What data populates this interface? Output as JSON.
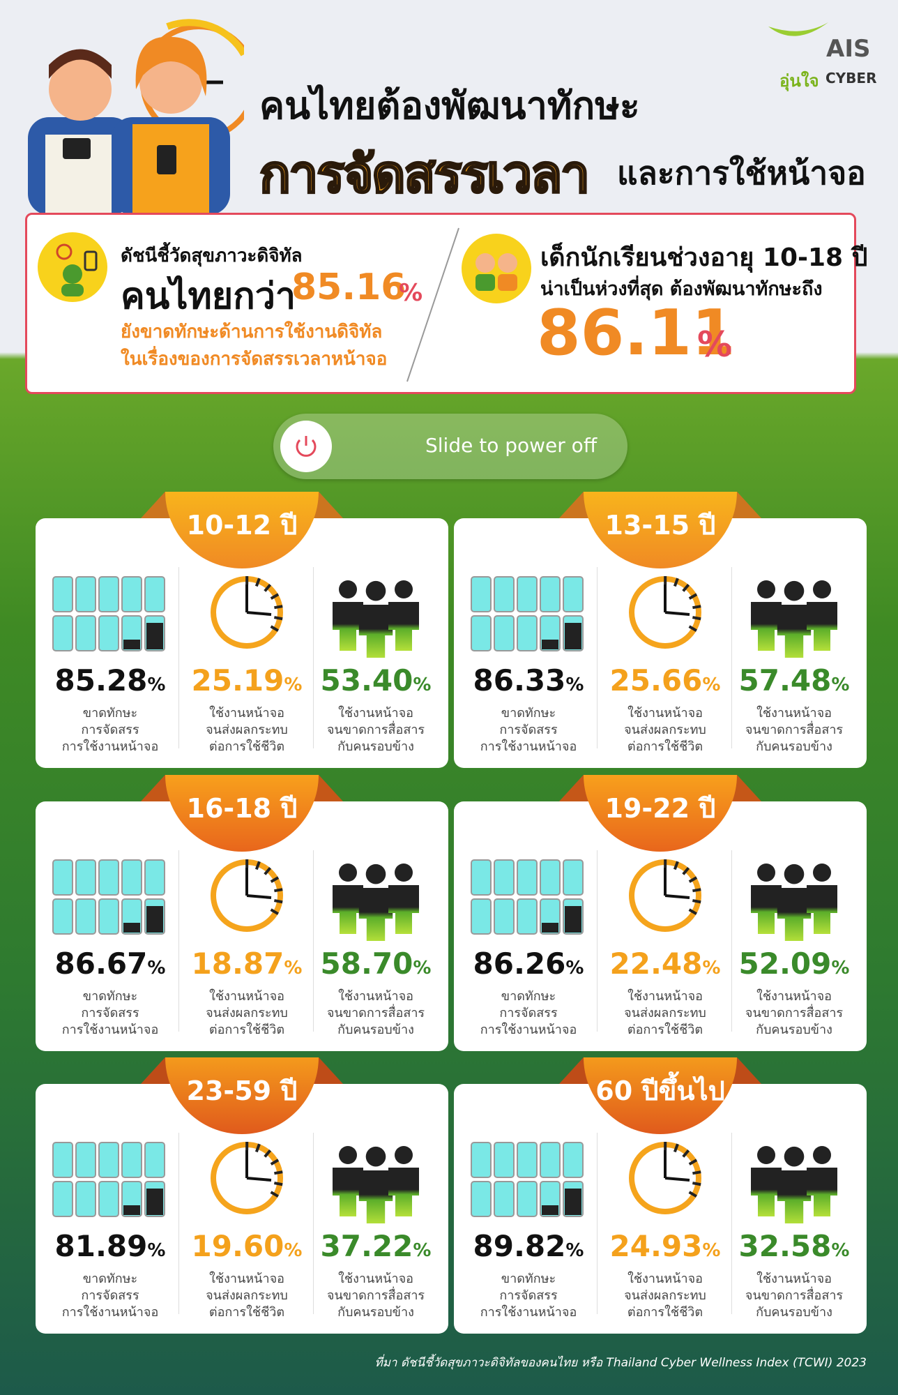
{
  "header": {
    "title_line1": "คนไทยต้องพัฒนาทักษะ",
    "title_highlight": "การจัดสรรเวลา",
    "title_line2": "และการใช้หน้าจอ",
    "logo_brand": "AIS",
    "logo_sub": "อุ่นใจ",
    "logo_cyber": "CYBER"
  },
  "summary": {
    "left": {
      "label": "ดัชนีชี้วัดสุขภาวะดิจิทัล",
      "lead": "คนไทยกว่า",
      "value": "85.16",
      "unit": "%",
      "line1": "ยังขาดทักษะด้านการใช้งานดิจิทัล",
      "line2": "ในเรื่องของการจัดสรรเวลาหน้าจอ"
    },
    "right": {
      "line1": "เด็กนักเรียนช่วงอายุ 10-18 ปี",
      "line2": "น่าเป็นห่วงที่สุด ต้องพัฒนาทักษะถึง",
      "value": "86.11",
      "unit": "%"
    }
  },
  "slider": {
    "label": "Slide to power off"
  },
  "cards": [
    {
      "age": "10-12 ปี",
      "stats": [
        {
          "value": "85.28",
          "unit": "%",
          "lines": [
            "ขาดทักษะ",
            "การจัดสรร",
            "การใช้งานหน้าจอ"
          ]
        },
        {
          "value": "25.19",
          "unit": "%",
          "lines": [
            "ใช้งานหน้าจอ",
            "จนส่งผลกระทบ",
            "ต่อการใช้ชีวิต"
          ]
        },
        {
          "value": "53.40",
          "unit": "%",
          "lines": [
            "ใช้งานหน้าจอ",
            "จนขาดการสื่อสาร",
            "กับคนรอบข้าง"
          ]
        }
      ]
    },
    {
      "age": "13-15 ปี",
      "stats": [
        {
          "value": "86.33",
          "unit": "%",
          "lines": [
            "ขาดทักษะ",
            "การจัดสรร",
            "การใช้งานหน้าจอ"
          ]
        },
        {
          "value": "25.66",
          "unit": "%",
          "lines": [
            "ใช้งานหน้าจอ",
            "จนส่งผลกระทบ",
            "ต่อการใช้ชีวิต"
          ]
        },
        {
          "value": "57.48",
          "unit": "%",
          "lines": [
            "ใช้งานหน้าจอ",
            "จนขาดการสื่อสาร",
            "กับคนรอบข้าง"
          ]
        }
      ]
    },
    {
      "age": "16-18 ปี",
      "stats": [
        {
          "value": "86.67",
          "unit": "%",
          "lines": [
            "ขาดทักษะ",
            "การจัดสรร",
            "การใช้งานหน้าจอ"
          ]
        },
        {
          "value": "18.87",
          "unit": "%",
          "lines": [
            "ใช้งานหน้าจอ",
            "จนส่งผลกระทบ",
            "ต่อการใช้ชีวิต"
          ]
        },
        {
          "value": "58.70",
          "unit": "%",
          "lines": [
            "ใช้งานหน้าจอ",
            "จนขาดการสื่อสาร",
            "กับคนรอบข้าง"
          ]
        }
      ]
    },
    {
      "age": "19-22 ปี",
      "stats": [
        {
          "value": "86.26",
          "unit": "%",
          "lines": [
            "ขาดทักษะ",
            "การจัดสรร",
            "การใช้งานหน้าจอ"
          ]
        },
        {
          "value": "22.48",
          "unit": "%",
          "lines": [
            "ใช้งานหน้าจอ",
            "จนส่งผลกระทบ",
            "ต่อการใช้ชีวิต"
          ]
        },
        {
          "value": "52.09",
          "unit": "%",
          "lines": [
            "ใช้งานหน้าจอ",
            "จนขาดการสื่อสาร",
            "กับคนรอบข้าง"
          ]
        }
      ]
    },
    {
      "age": "23-59 ปี",
      "stats": [
        {
          "value": "81.89",
          "unit": "%",
          "lines": [
            "ขาดทักษะ",
            "การจัดสรร",
            "การใช้งานหน้าจอ"
          ]
        },
        {
          "value": "19.60",
          "unit": "%",
          "lines": [
            "ใช้งานหน้าจอ",
            "จนส่งผลกระทบ",
            "ต่อการใช้ชีวิต"
          ]
        },
        {
          "value": "37.22",
          "unit": "%",
          "lines": [
            "ใช้งานหน้าจอ",
            "จนขาดการสื่อสาร",
            "กับคนรอบข้าง"
          ]
        }
      ]
    },
    {
      "age": "60 ปีขึ้นไป",
      "stats": [
        {
          "value": "89.82",
          "unit": "%",
          "lines": [
            "ขาดทักษะ",
            "การจัดสรร",
            "การใช้งานหน้าจอ"
          ]
        },
        {
          "value": "24.93",
          "unit": "%",
          "lines": [
            "ใช้งานหน้าจอ",
            "จนส่งผลกระทบ",
            "ต่อการใช้ชีวิต"
          ]
        },
        {
          "value": "32.58",
          "unit": "%",
          "lines": [
            "ใช้งานหน้าจอ",
            "จนขาดการสื่อสาร",
            "กับคนรอบข้าง"
          ]
        }
      ]
    }
  ],
  "source": "ที่มา ดัชนีชี้วัดสุขภาวะดิจิทัลของคนไทย หรือ Thailand Cyber Wellness Index (TCWI) 2023"
}
